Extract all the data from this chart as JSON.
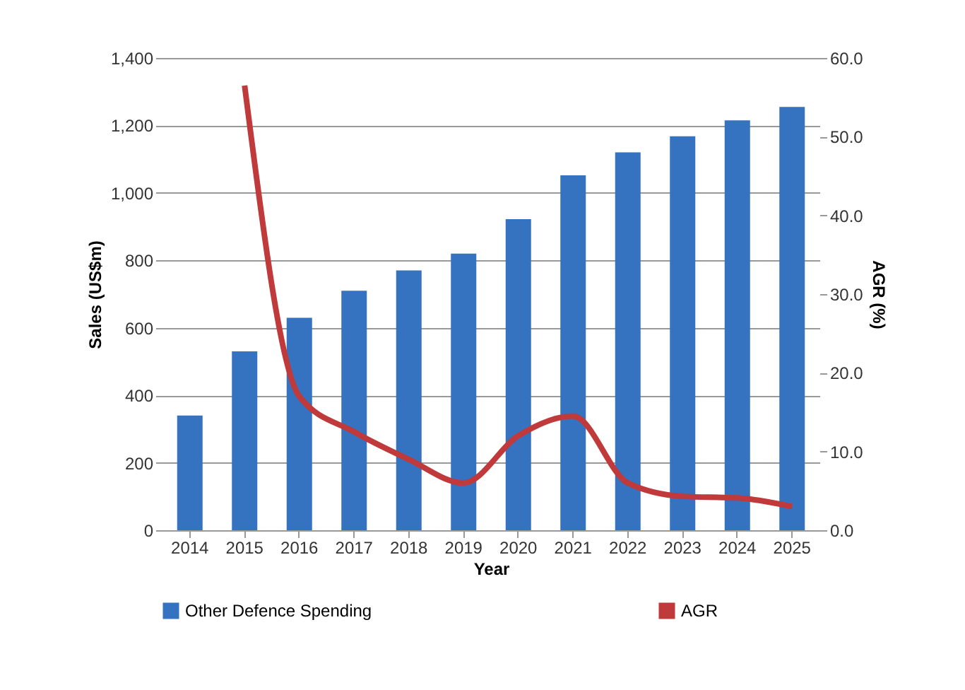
{
  "chart_data": {
    "type": "bar",
    "xlabel": "Year",
    "ylabel": "Sales (US$m)",
    "y2label": "AGR (%)",
    "categories": [
      "2014",
      "2015",
      "2016",
      "2017",
      "2018",
      "2019",
      "2020",
      "2021",
      "2022",
      "2023",
      "2024",
      "2025"
    ],
    "series": [
      {
        "name": "Other Defence Spending",
        "color": "#3572c0",
        "values": [
          340,
          530,
          630,
          710,
          770,
          820,
          922,
          1052,
          1120,
          1168,
          1215,
          1255
        ]
      },
      {
        "name": "AGR",
        "type": "line",
        "axis": "y2",
        "color": "#c0393b",
        "values": [
          null,
          56.5,
          17.0,
          12.5,
          9.0,
          6.0,
          12.0,
          14.5,
          6.0,
          4.3,
          4.1,
          3.0
        ]
      }
    ],
    "ylim": [
      0,
      1400
    ],
    "yticks": [
      0,
      200,
      400,
      600,
      800,
      {
        "value": 1000,
        "label": "1,000"
      },
      {
        "value": 1200,
        "label": "1,200"
      },
      {
        "value": 1400,
        "label": "1,400"
      }
    ],
    "y2lim": [
      0,
      60
    ],
    "y2ticks": [
      {
        "value": 0,
        "label": "0.0"
      },
      {
        "value": 10,
        "label": "10.0"
      },
      {
        "value": 20,
        "label": "20.0"
      },
      {
        "value": 30,
        "label": "30.0"
      },
      {
        "value": 40,
        "label": "40.0"
      },
      {
        "value": 50,
        "label": "50.0"
      },
      {
        "value": 60,
        "label": "60.0"
      }
    ],
    "grid": "y",
    "legend": "bottom",
    "marker": "none",
    "line_style": "solid"
  }
}
